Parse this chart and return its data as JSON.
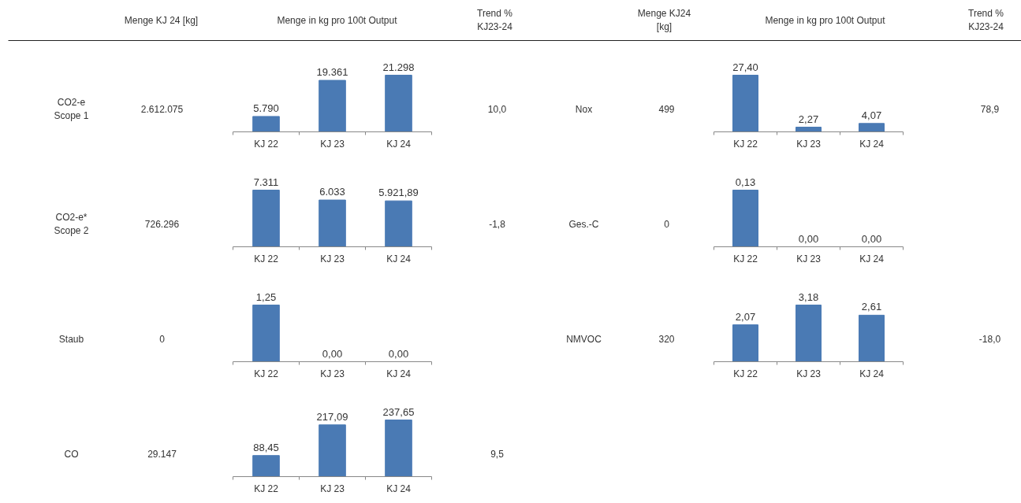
{
  "chart_data": [
    {
      "type": "other",
      "annotations": [
        "Menge KJ 24 [kg]",
        "Menge in kg pro 100t Output",
        "Trend % KJ23-24",
        "Menge KJ24 [kg]",
        "Menge in kg pro 100t Output",
        "Trend % KJ23-24"
      ]
    },
    {
      "type": "bar",
      "categories": [
        "KJ 22",
        "KJ 23",
        "KJ 24"
      ],
      "values": [
        5790,
        19361,
        21298
      ],
      "value_labels": [
        "5.790",
        "19.361",
        "21.298"
      ],
      "color": "#4a7ab4",
      "annotations": [
        "CO2-e Scope 1",
        "2.612.075",
        "10,0"
      ]
    },
    {
      "type": "bar",
      "categories": [
        "KJ 22",
        "KJ 23",
        "KJ 24"
      ],
      "values": [
        27.4,
        2.27,
        4.07
      ],
      "value_labels": [
        "27,40",
        "2,27",
        "4,07"
      ],
      "color": "#4a7ab4",
      "annotations": [
        "Nox",
        "499",
        "78,9"
      ]
    },
    {
      "type": "bar",
      "categories": [
        "KJ 22",
        "KJ 23",
        "KJ 24"
      ],
      "values": [
        7311,
        6033,
        5921.89
      ],
      "value_labels": [
        "7.311",
        "6.033",
        "5.921,89"
      ],
      "color": "#4a7ab4",
      "annotations": [
        "CO2-e* Scope 2",
        "726.296",
        "-1,8"
      ]
    },
    {
      "type": "bar",
      "categories": [
        "KJ 22",
        "KJ 23",
        "KJ 24"
      ],
      "values": [
        0.13,
        0,
        0
      ],
      "value_labels": [
        "0,13",
        "0,00",
        "0,00"
      ],
      "color": "#4a7ab4",
      "annotations": [
        "Ges.-C",
        "0"
      ]
    },
    {
      "type": "bar",
      "categories": [
        "KJ 22",
        "KJ 23",
        "KJ 24"
      ],
      "values": [
        1.25,
        0,
        0
      ],
      "value_labels": [
        "1,25",
        "0,00",
        "0,00"
      ],
      "color": "#4a7ab4",
      "annotations": [
        "Staub",
        "0"
      ]
    },
    {
      "type": "bar",
      "categories": [
        "KJ 22",
        "KJ 23",
        "KJ 24"
      ],
      "values": [
        2.07,
        3.18,
        2.61
      ],
      "value_labels": [
        "2,07",
        "3,18",
        "2,61"
      ],
      "color": "#4a7ab4",
      "annotations": [
        "NMVOC",
        "320",
        "-18,0"
      ]
    },
    {
      "type": "bar",
      "categories": [
        "KJ 22",
        "KJ 23",
        "KJ 24"
      ],
      "values": [
        88.45,
        217.09,
        237.65
      ],
      "value_labels": [
        "88,45",
        "217,09",
        "237,65"
      ],
      "color": "#4a7ab4",
      "annotations": [
        "CO",
        "29.147",
        "9,5"
      ]
    }
  ]
}
